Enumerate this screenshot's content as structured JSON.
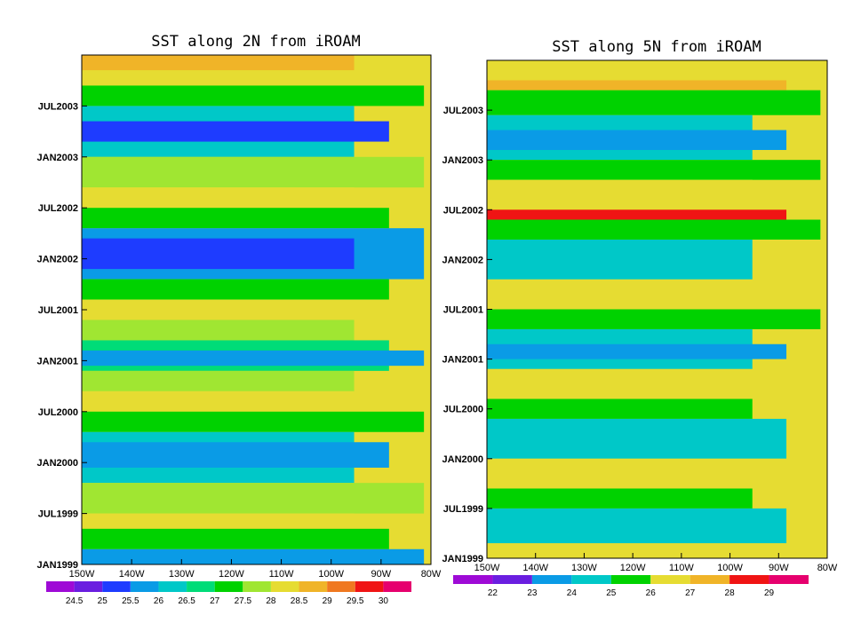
{
  "chart_data": [
    {
      "type": "heatmap",
      "title": "SST along 2N from iROAM",
      "xlabel": "",
      "ylabel": "",
      "x_ticks": [
        "150W",
        "140W",
        "130W",
        "120W",
        "110W",
        "100W",
        "90W",
        "80W"
      ],
      "y_ticks": [
        "JAN1999",
        "JUL1999",
        "JAN2000",
        "JUL2000",
        "JAN2001",
        "JUL2001",
        "JAN2002",
        "JUL2002",
        "JAN2003",
        "JUL2003"
      ],
      "colorbar": {
        "levels": [
          "24.5",
          "25",
          "25.5",
          "26",
          "26.5",
          "27",
          "27.5",
          "28",
          "28.5",
          "29",
          "29.5",
          "30"
        ],
        "colors": [
          "#9e0ad6",
          "#6a1ee0",
          "#1e3cff",
          "#0a9be6",
          "#00c8c8",
          "#00dc78",
          "#00d200",
          "#a0e632",
          "#e6dc32",
          "#f0b428",
          "#f07820",
          "#f01414",
          "#e6006e"
        ]
      }
    },
    {
      "type": "heatmap",
      "title": "SST along 5N from iROAM",
      "xlabel": "",
      "ylabel": "",
      "x_ticks": [
        "150W",
        "140W",
        "130W",
        "120W",
        "110W",
        "100W",
        "90W",
        "80W"
      ],
      "y_ticks": [
        "JAN1999",
        "JUL1999",
        "JAN2000",
        "JUL2000",
        "JAN2001",
        "JUL2001",
        "JAN2002",
        "JUL2002",
        "JAN2003",
        "JUL2003"
      ],
      "colorbar": {
        "levels": [
          "22",
          "23",
          "24",
          "25",
          "26",
          "27",
          "28",
          "29"
        ],
        "colors": [
          "#9e0ad6",
          "#6a1ee0",
          "#0a9be6",
          "#00c8c8",
          "#00d200",
          "#e6dc32",
          "#f0b428",
          "#f01414",
          "#e6006e"
        ]
      }
    }
  ]
}
